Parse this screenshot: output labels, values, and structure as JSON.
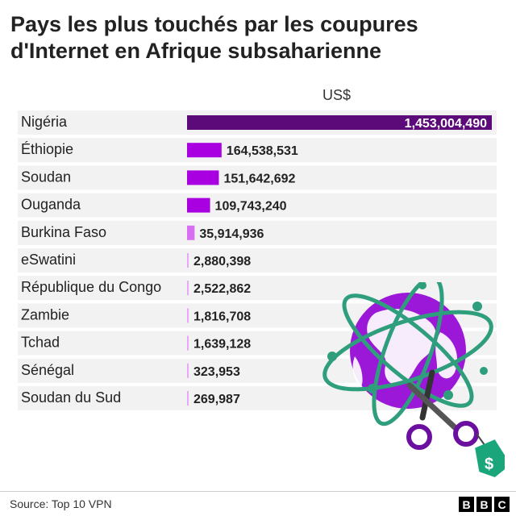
{
  "title": "Pays les plus touchés par les coupures d'Internet en Afrique subsaharienne",
  "unit": "US$",
  "source": "Source: Top 10 VPN",
  "logo": [
    "B",
    "B",
    "C"
  ],
  "illustration_icon": "globe-scissors-price-tag-icon",
  "colors": {
    "row_bg": "#f2f2f2",
    "bar_top": "#5c0a79",
    "bar_mid": "#a800e0",
    "bar_small": "#d66ff0",
    "bar_tiny": "#e7a9f5",
    "globe": "#9b18d8",
    "orbit": "#2f9e7d",
    "tag": "#1aa67a"
  },
  "chart_data": {
    "type": "bar",
    "orientation": "horizontal",
    "title": "Pays les plus touchés par les coupures d'Internet en Afrique subsaharienne",
    "xlabel": "US$",
    "categories": [
      "Nigéria",
      "Éthiopie",
      "Soudan",
      "Ouganda",
      "Burkina Faso",
      "eSwatini",
      "République du Congo",
      "Zambie",
      "Tchad",
      "Sénégal",
      "Soudan du Sud"
    ],
    "values": [
      1453004490,
      164538531,
      151642692,
      109743240,
      35914936,
      2880398,
      2522862,
      1816708,
      1639128,
      323953,
      269987
    ],
    "labels": [
      "1,453,004,490",
      "164,538,531",
      "151,642,692",
      "109,743,240",
      "35,914,936",
      "2,880,398",
      "2,522,862",
      "1,816,708",
      "1,639,128",
      "323,953",
      "269,987"
    ],
    "xlim": [
      0,
      1453004490
    ],
    "grid": false,
    "legend": "none"
  }
}
